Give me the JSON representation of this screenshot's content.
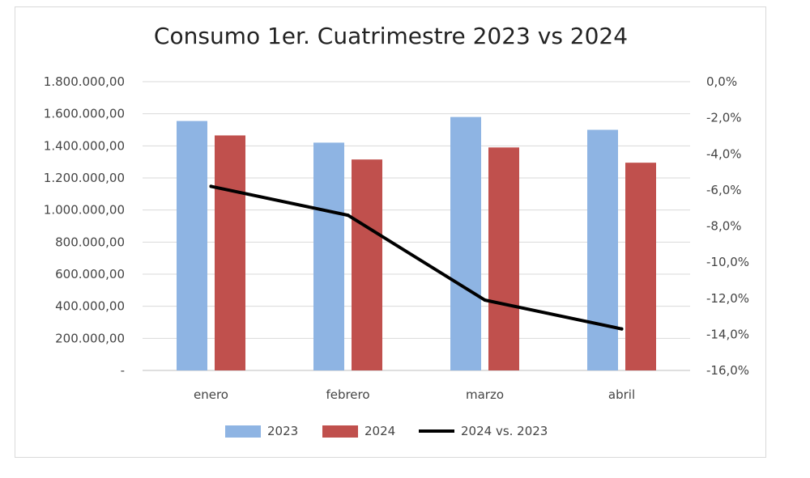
{
  "chart_data": {
    "type": "bar",
    "title": "Consumo 1er. Cuatrimestre 2023 vs 2024",
    "categories": [
      "enero",
      "febrero",
      "marzo",
      "abril"
    ],
    "series": [
      {
        "name": "2023",
        "type": "bar",
        "axis": "left",
        "color": "#8eb4e3",
        "values": [
          1555000,
          1420000,
          1580000,
          1500000
        ]
      },
      {
        "name": "2024",
        "type": "bar",
        "axis": "left",
        "color": "#c0504d",
        "values": [
          1465000,
          1315000,
          1390000,
          1295000
        ]
      },
      {
        "name": "2024 vs.  2023",
        "type": "line",
        "axis": "right",
        "color": "#000000",
        "values": [
          -5.8,
          -7.4,
          -12.1,
          -13.7
        ]
      }
    ],
    "left_axis": {
      "min": 0,
      "max": 1800000,
      "step": 200000,
      "tick_labels": [
        "-",
        "200.000,00",
        "400.000,00",
        "600.000,00",
        "800.000,00",
        "1.000.000,00",
        "1.200.000,00",
        "1.400.000,00",
        "1.600.000,00",
        "1.800.000,00"
      ]
    },
    "right_axis": {
      "min": -16,
      "max": 0,
      "step": 2,
      "tick_labels": [
        "-16,0%",
        "-14,0%",
        "-12,0%",
        "-10,0%",
        "-8,0%",
        "-6,0%",
        "-4,0%",
        "-2,0%",
        "0,0%"
      ]
    },
    "grid": true,
    "legend_position": "bottom"
  }
}
